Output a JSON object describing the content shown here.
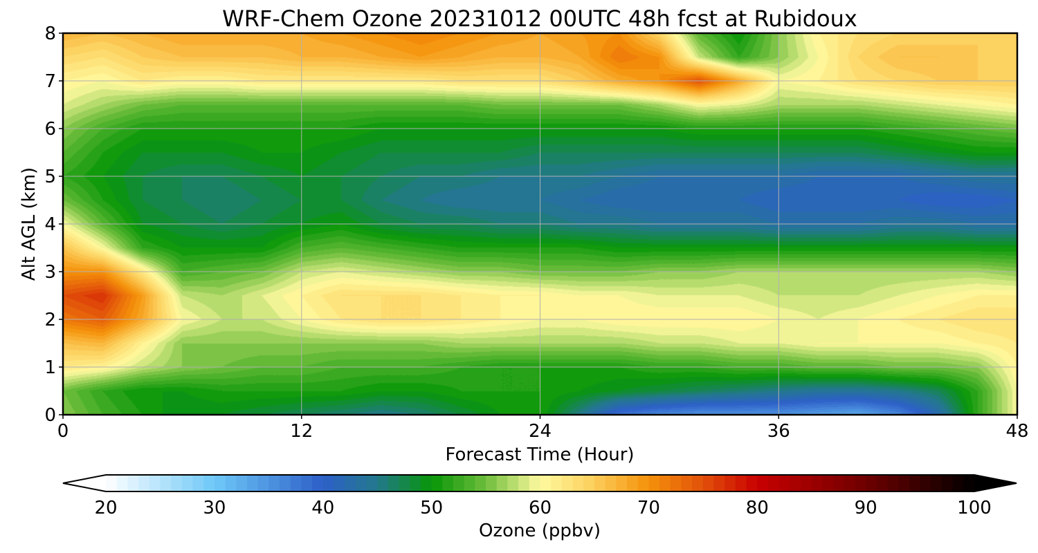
{
  "chart_data": {
    "type": "heatmap",
    "title": "WRF-Chem Ozone  20231012 00UTC 48h fcst at Rubidoux",
    "xlabel": "Forecast Time (Hour)",
    "ylabel": "Alt AGL (km)",
    "xlim": [
      0,
      48
    ],
    "ylim": [
      0,
      8
    ],
    "x_ticks": [
      "0",
      "12",
      "24",
      "36",
      "48"
    ],
    "y_ticks": [
      "0",
      "1",
      "2",
      "3",
      "4",
      "5",
      "6",
      "7",
      "8"
    ],
    "grid": true,
    "colorbar": {
      "label": "Ozone  (ppbv)",
      "range": [
        20,
        100
      ],
      "extend": "both",
      "ticks": [
        "20",
        "30",
        "40",
        "50",
        "60",
        "70",
        "80",
        "90",
        "100"
      ]
    },
    "x": [
      0,
      2,
      4,
      6,
      8,
      10,
      12,
      14,
      16,
      18,
      20,
      22,
      24,
      26,
      28,
      30,
      32,
      34,
      36,
      38,
      40,
      42,
      44,
      46,
      48
    ],
    "y": [
      0,
      0.5,
      1,
      1.5,
      2,
      2.5,
      3,
      3.5,
      4,
      4.5,
      5,
      5.5,
      6,
      6.5,
      7,
      7.5,
      8
    ],
    "z": [
      [
        56,
        53,
        51,
        49,
        49,
        48,
        47,
        46,
        45,
        46,
        48,
        50,
        51,
        45,
        38,
        36,
        35,
        35,
        35,
        34,
        33,
        36,
        42,
        52,
        60
      ],
      [
        55,
        52,
        50,
        50,
        51,
        51,
        51,
        51,
        50,
        50,
        51,
        51,
        51,
        50,
        49,
        48,
        47,
        46,
        45,
        44,
        44,
        45,
        47,
        52,
        60
      ],
      [
        62,
        61,
        58,
        56,
        55,
        54,
        54,
        53,
        53,
        53,
        52,
        51,
        51,
        51,
        51,
        52,
        52,
        53,
        53,
        54,
        54,
        55,
        55,
        56,
        61
      ],
      [
        66,
        67,
        61,
        56,
        56,
        56,
        56,
        56,
        56,
        56,
        57,
        57,
        57,
        57,
        57,
        58,
        58,
        59,
        59,
        60,
        60,
        60,
        60,
        61,
        62
      ],
      [
        72,
        74,
        68,
        60,
        58,
        58,
        60,
        62,
        63,
        63,
        62,
        61,
        60,
        60,
        61,
        61,
        61,
        61,
        60,
        59,
        60,
        61,
        62,
        63,
        63
      ],
      [
        75,
        77,
        69,
        58,
        57,
        59,
        61,
        63,
        63,
        63,
        62,
        61,
        61,
        60,
        60,
        59,
        59,
        59,
        58,
        58,
        58,
        59,
        60,
        61,
        61
      ],
      [
        70,
        70,
        62,
        53,
        54,
        55,
        58,
        59,
        58,
        57,
        56,
        56,
        55,
        55,
        55,
        56,
        56,
        57,
        57,
        57,
        57,
        57,
        57,
        57,
        56
      ],
      [
        66,
        60,
        52,
        50,
        50,
        50,
        53,
        54,
        53,
        52,
        51,
        51,
        51,
        51,
        50,
        50,
        50,
        50,
        50,
        50,
        50,
        50,
        50,
        50,
        50
      ],
      [
        60,
        54,
        49,
        48,
        47,
        48,
        49,
        50,
        48,
        47,
        47,
        46,
        46,
        45,
        45,
        44,
        44,
        44,
        43,
        43,
        43,
        44,
        44,
        43,
        43
      ],
      [
        55,
        51,
        48,
        47,
        46,
        47,
        48,
        48,
        46,
        45,
        44,
        44,
        44,
        43,
        42,
        42,
        42,
        42,
        41,
        41,
        41,
        41,
        40,
        40,
        41
      ],
      [
        52,
        50,
        48,
        47,
        47,
        48,
        49,
        48,
        47,
        46,
        46,
        45,
        45,
        45,
        44,
        43,
        43,
        43,
        43,
        42,
        42,
        42,
        43,
        44,
        44
      ],
      [
        54,
        51,
        49,
        49,
        49,
        50,
        50,
        49,
        48,
        48,
        48,
        48,
        47,
        47,
        47,
        47,
        47,
        47,
        47,
        47,
        47,
        48,
        49,
        50,
        50
      ],
      [
        56,
        53,
        51,
        51,
        51,
        51,
        51,
        51,
        50,
        50,
        50,
        50,
        50,
        50,
        50,
        50,
        51,
        51,
        51,
        51,
        51,
        52,
        53,
        54,
        55
      ],
      [
        59,
        57,
        55,
        54,
        54,
        54,
        54,
        54,
        54,
        54,
        54,
        55,
        55,
        55,
        55,
        57,
        60,
        59,
        57,
        57,
        57,
        58,
        59,
        60,
        61
      ],
      [
        61,
        60,
        62,
        61,
        61,
        62,
        62,
        62,
        62,
        62,
        63,
        63,
        63,
        65,
        68,
        70,
        75,
        68,
        60,
        61,
        63,
        64,
        65,
        65,
        65
      ],
      [
        64,
        63,
        65,
        66,
        66,
        66,
        67,
        67,
        68,
        69,
        68,
        67,
        67,
        68,
        72,
        70,
        58,
        52,
        56,
        60,
        64,
        66,
        66,
        65,
        64
      ],
      [
        67,
        66,
        67,
        68,
        68,
        68,
        68,
        69,
        70,
        71,
        70,
        69,
        68,
        69,
        70,
        64,
        54,
        50,
        56,
        61,
        63,
        64,
        64,
        65,
        64
      ]
    ]
  }
}
